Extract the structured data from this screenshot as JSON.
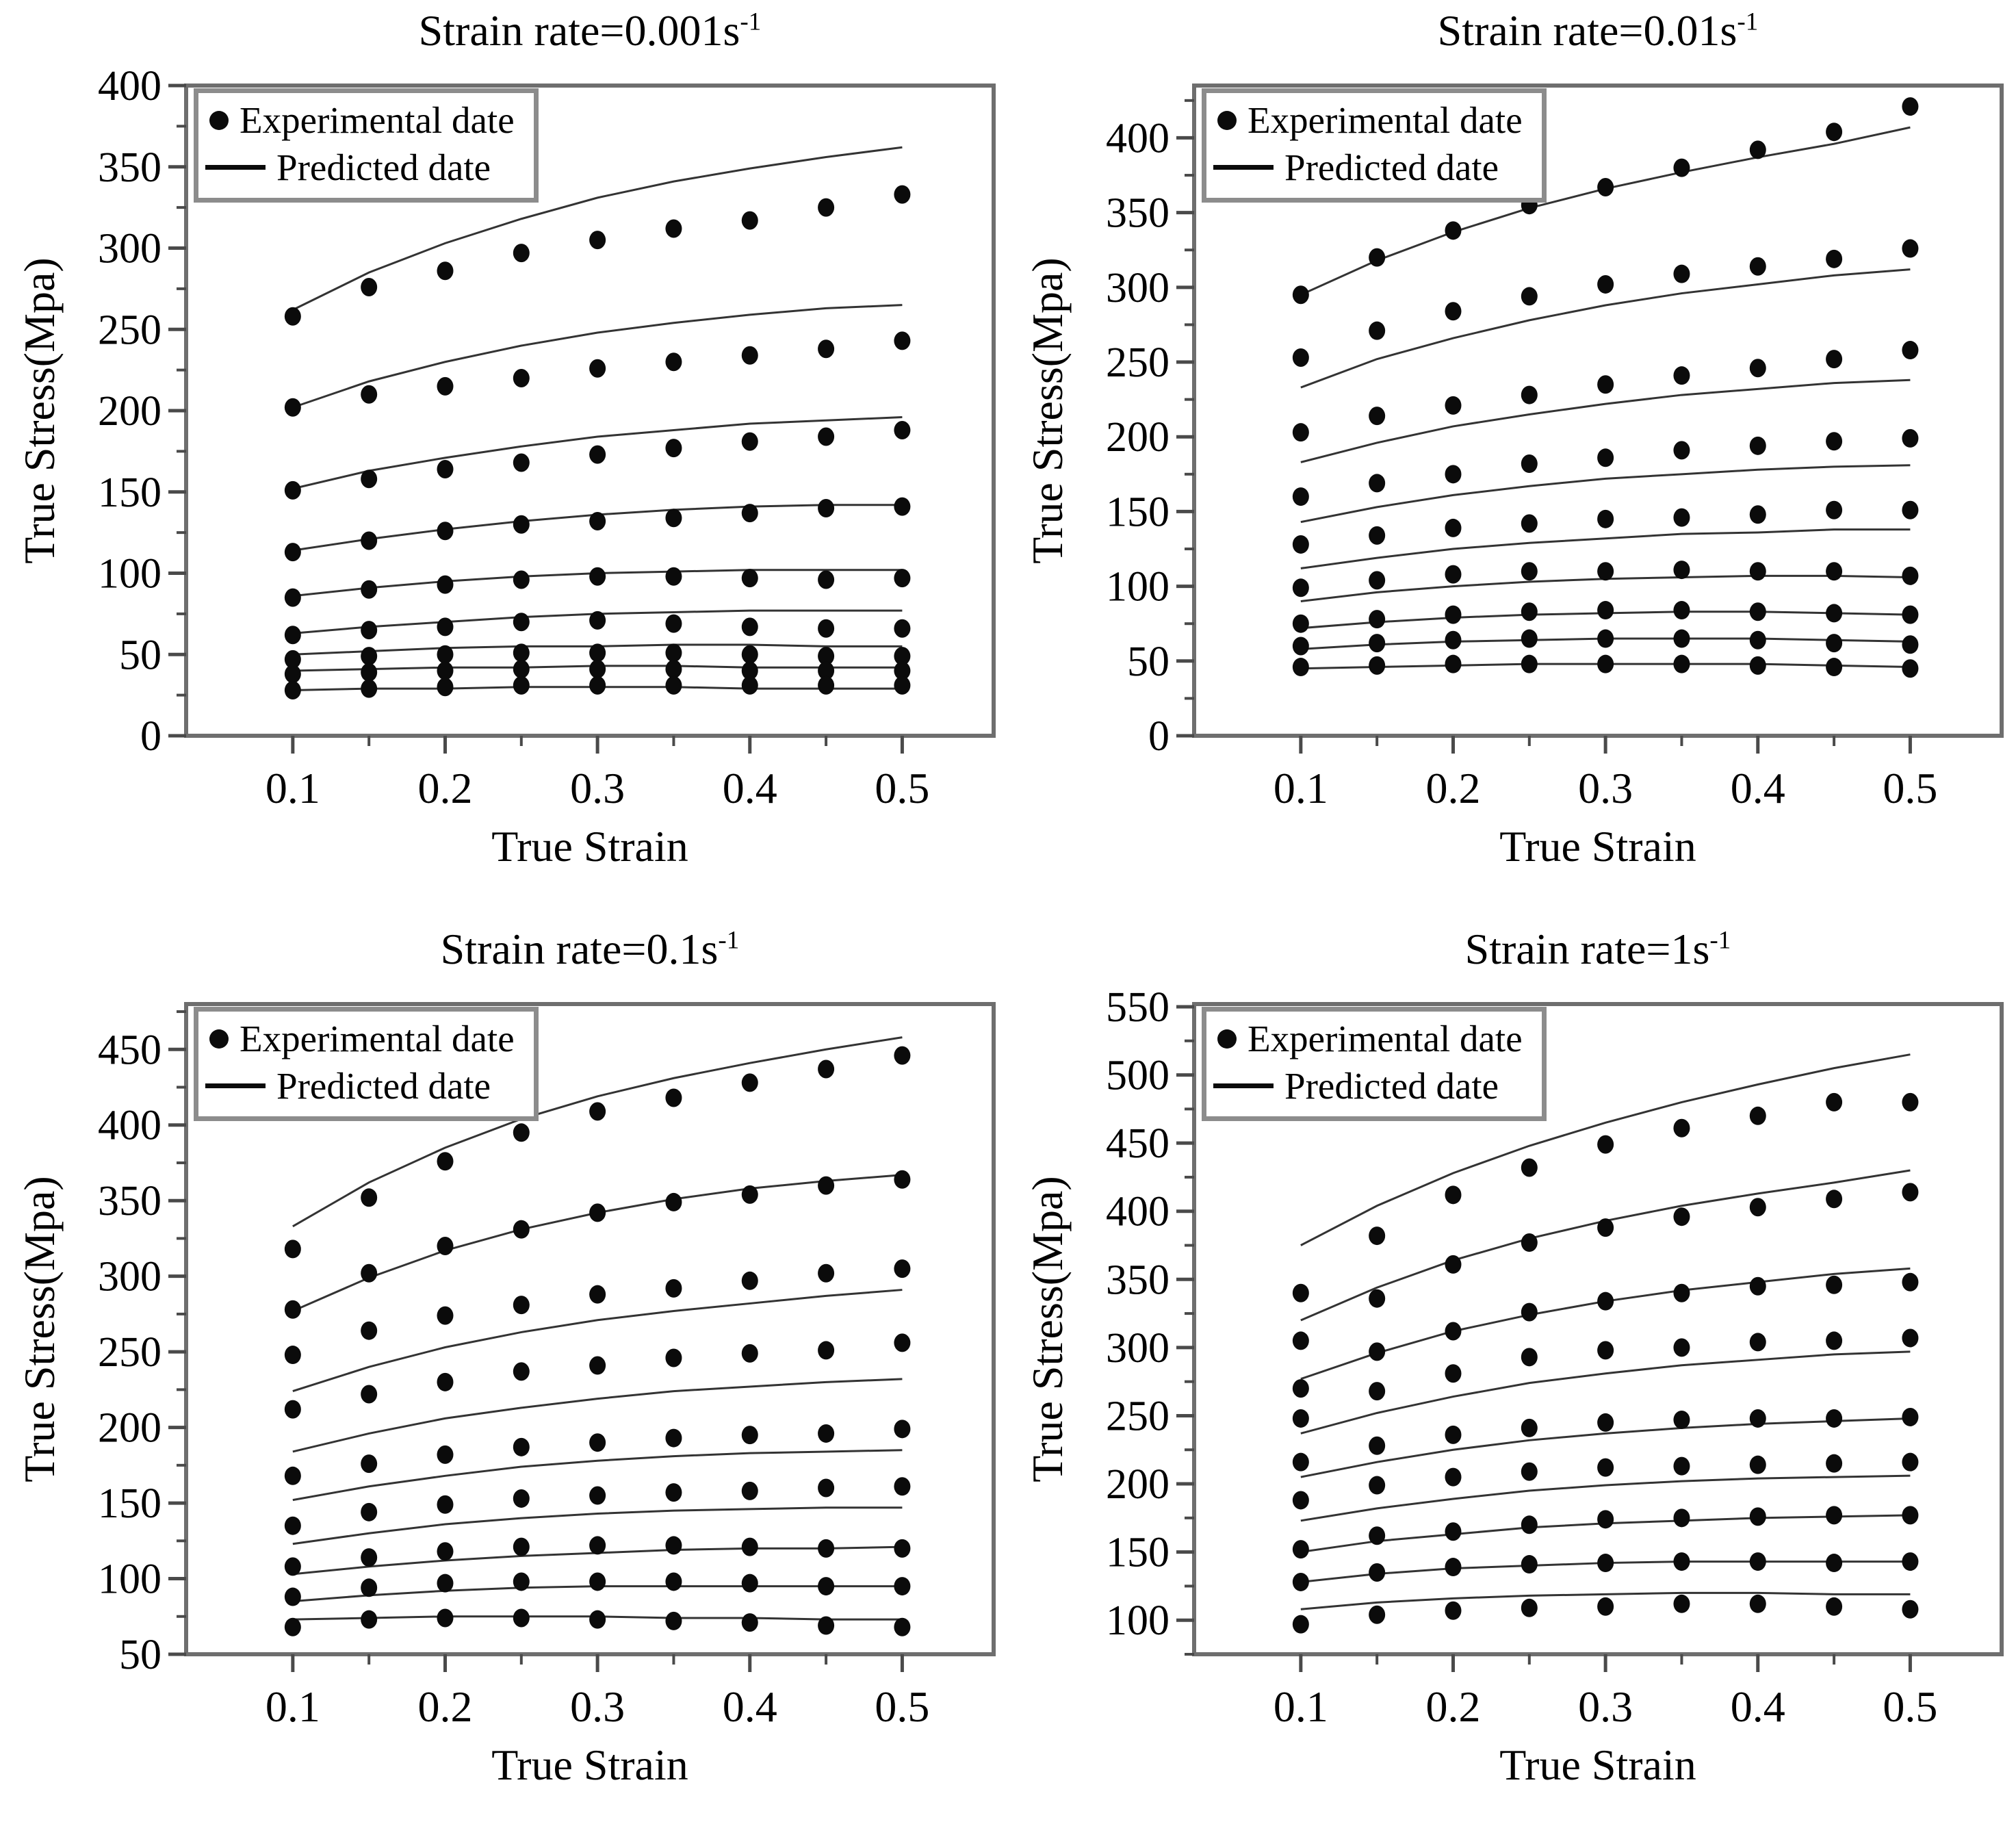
{
  "legend": {
    "experimental": "Experimental date",
    "predicted": "Predicted date"
  },
  "colors": {
    "dot": "#0b0b0b",
    "predicted_line": "#333333",
    "spine": "#6e6e6e",
    "tick": "#4a4a4a",
    "legend_border": "#8c8c8c",
    "background": "#ffffff"
  },
  "chart_data": [
    {
      "type": "scatter",
      "title_base": "Strain rate=0.001s",
      "title_sup": "-1",
      "xlabel": "True Strain",
      "ylabel": "True Stress(Mpa)",
      "legend_entries": [
        "Experimental date",
        "Predicted date"
      ],
      "legend_position": "top-left",
      "grid": false,
      "x": [
        0.1,
        0.15,
        0.2,
        0.25,
        0.3,
        0.35,
        0.4,
        0.45,
        0.5
      ],
      "xticks": [
        0.1,
        0.2,
        0.3,
        0.4,
        0.5
      ],
      "xlim": [
        0.03,
        0.56
      ],
      "ylim": [
        0,
        400
      ],
      "yticks": [
        0,
        50,
        100,
        150,
        200,
        250,
        300,
        350,
        400
      ],
      "y_minor_step": 25,
      "series_experimental": [
        [
          258,
          276,
          286,
          297,
          305,
          312,
          317,
          325,
          333
        ],
        [
          202,
          210,
          215,
          220,
          226,
          230,
          234,
          238,
          243
        ],
        [
          151,
          158,
          164,
          168,
          173,
          177,
          181,
          184,
          188
        ],
        [
          113,
          120,
          126,
          130,
          132,
          134,
          137,
          140,
          141
        ],
        [
          85,
          90,
          93,
          96,
          98,
          98,
          97,
          96,
          97
        ],
        [
          62,
          65,
          67,
          70,
          71,
          69,
          67,
          66,
          66
        ],
        [
          47,
          49,
          50,
          51,
          51,
          51,
          50,
          49,
          49
        ],
        [
          38,
          39,
          40,
          41,
          41,
          41,
          40,
          40,
          40
        ],
        [
          28,
          29,
          30,
          31,
          31,
          31,
          31,
          31,
          31
        ]
      ],
      "series_predicted": [
        [
          262,
          285,
          303,
          318,
          331,
          341,
          349,
          356,
          362
        ],
        [
          202,
          218,
          230,
          240,
          248,
          254,
          259,
          263,
          265
        ],
        [
          152,
          163,
          171,
          178,
          184,
          188,
          192,
          194,
          196
        ],
        [
          114,
          121,
          127,
          132,
          136,
          139,
          141,
          142,
          142
        ],
        [
          86,
          91,
          95,
          98,
          100,
          101,
          102,
          102,
          102
        ],
        [
          63,
          67,
          70,
          73,
          75,
          76,
          77,
          77,
          77
        ],
        [
          50,
          52,
          54,
          55,
          55,
          56,
          56,
          55,
          55
        ],
        [
          40,
          41,
          42,
          42,
          43,
          43,
          42,
          42,
          42
        ],
        [
          28,
          29,
          29,
          30,
          30,
          30,
          29,
          29,
          29
        ]
      ]
    },
    {
      "type": "scatter",
      "title_base": "Strain rate=0.01s",
      "title_sup": "-1",
      "xlabel": "True Strain",
      "ylabel": "True Stress(Mpa)",
      "legend_entries": [
        "Experimental date",
        "Predicted date"
      ],
      "legend_position": "top-left",
      "grid": false,
      "x": [
        0.1,
        0.15,
        0.2,
        0.25,
        0.3,
        0.35,
        0.4,
        0.45,
        0.5
      ],
      "xticks": [
        0.1,
        0.2,
        0.3,
        0.4,
        0.5
      ],
      "xlim": [
        0.03,
        0.56
      ],
      "ylim": [
        0,
        435
      ],
      "yticks": [
        0,
        50,
        100,
        150,
        200,
        250,
        300,
        350,
        400
      ],
      "y_minor_step": 25,
      "series_experimental": [
        [
          295,
          320,
          338,
          355,
          367,
          380,
          392,
          404,
          421
        ],
        [
          253,
          271,
          284,
          294,
          302,
          309,
          314,
          319,
          326
        ],
        [
          203,
          214,
          221,
          228,
          235,
          241,
          246,
          252,
          258
        ],
        [
          160,
          169,
          175,
          182,
          186,
          191,
          194,
          197,
          199
        ],
        [
          128,
          134,
          139,
          142,
          145,
          146,
          148,
          151,
          151
        ],
        [
          99,
          104,
          108,
          110,
          110,
          111,
          110,
          110,
          107
        ],
        [
          75,
          78,
          81,
          83,
          84,
          84,
          83,
          82,
          81
        ],
        [
          60,
          62,
          64,
          65,
          65,
          65,
          64,
          62,
          61
        ],
        [
          46,
          47,
          48,
          48,
          48,
          48,
          47,
          46,
          45
        ]
      ],
      "series_predicted": [
        [
          295,
          318,
          337,
          353,
          366,
          377,
          387,
          396,
          407
        ],
        [
          233,
          252,
          266,
          278,
          288,
          296,
          302,
          308,
          312
        ],
        [
          183,
          196,
          207,
          215,
          222,
          228,
          232,
          236,
          238
        ],
        [
          143,
          153,
          161,
          167,
          172,
          175,
          178,
          180,
          181
        ],
        [
          112,
          119,
          125,
          129,
          132,
          135,
          136,
          138,
          138
        ],
        [
          90,
          96,
          100,
          103,
          105,
          106,
          107,
          107,
          106
        ],
        [
          72,
          76,
          79,
          81,
          82,
          83,
          83,
          82,
          81
        ],
        [
          58,
          61,
          63,
          64,
          65,
          65,
          65,
          64,
          63
        ],
        [
          45,
          46,
          47,
          48,
          48,
          48,
          48,
          47,
          46
        ]
      ]
    },
    {
      "type": "scatter",
      "title_base": "Strain rate=0.1s",
      "title_sup": "-1",
      "xlabel": "True Strain",
      "ylabel": "True Stress(Mpa)",
      "legend_entries": [
        "Experimental date",
        "Predicted date"
      ],
      "legend_position": "top-left",
      "grid": false,
      "x": [
        0.1,
        0.15,
        0.2,
        0.25,
        0.3,
        0.35,
        0.4,
        0.45,
        0.5
      ],
      "xticks": [
        0.1,
        0.2,
        0.3,
        0.4,
        0.5
      ],
      "xlim": [
        0.03,
        0.56
      ],
      "ylim": [
        50,
        480
      ],
      "yticks": [
        50,
        100,
        150,
        200,
        250,
        300,
        350,
        400,
        450
      ],
      "y_minor_step": 25,
      "series_experimental": [
        [
          318,
          352,
          376,
          395,
          409,
          418,
          428,
          437,
          446
        ],
        [
          278,
          302,
          320,
          331,
          342,
          349,
          354,
          360,
          364
        ],
        [
          248,
          264,
          274,
          281,
          288,
          292,
          297,
          302,
          305
        ],
        [
          212,
          222,
          230,
          237,
          241,
          246,
          249,
          251,
          256
        ],
        [
          168,
          176,
          182,
          187,
          190,
          193,
          195,
          196,
          199
        ],
        [
          135,
          144,
          149,
          153,
          155,
          157,
          158,
          160,
          161
        ],
        [
          108,
          114,
          118,
          121,
          122,
          122,
          121,
          120,
          120
        ],
        [
          88,
          94,
          97,
          98,
          98,
          98,
          97,
          95,
          95
        ],
        [
          68,
          73,
          74,
          74,
          73,
          72,
          71,
          69,
          68
        ]
      ],
      "series_predicted": [
        [
          333,
          362,
          385,
          404,
          419,
          431,
          441,
          450,
          458
        ],
        [
          277,
          299,
          317,
          331,
          342,
          351,
          358,
          363,
          367
        ],
        [
          224,
          240,
          253,
          263,
          271,
          277,
          282,
          287,
          291
        ],
        [
          184,
          196,
          206,
          213,
          219,
          224,
          227,
          230,
          232
        ],
        [
          152,
          161,
          168,
          174,
          178,
          181,
          183,
          184,
          185
        ],
        [
          123,
          130,
          136,
          140,
          143,
          145,
          146,
          147,
          147
        ],
        [
          103,
          108,
          112,
          115,
          117,
          119,
          120,
          120,
          121
        ],
        [
          85,
          89,
          92,
          94,
          95,
          95,
          95,
          95,
          95
        ],
        [
          73,
          74,
          75,
          75,
          75,
          74,
          74,
          73,
          73
        ]
      ]
    },
    {
      "type": "scatter",
      "title_base": "Strain rate=1s",
      "title_sup": "-1",
      "xlabel": "True Strain",
      "ylabel": "True Stress(Mpa)",
      "legend_entries": [
        "Experimental date",
        "Predicted date"
      ],
      "legend_position": "top-left",
      "grid": false,
      "x": [
        0.1,
        0.15,
        0.2,
        0.25,
        0.3,
        0.35,
        0.4,
        0.45,
        0.5
      ],
      "xticks": [
        0.1,
        0.2,
        0.3,
        0.4,
        0.5
      ],
      "xlim": [
        0.03,
        0.56
      ],
      "ylim": [
        75,
        552
      ],
      "yticks": [
        100,
        150,
        200,
        250,
        300,
        350,
        400,
        450,
        500,
        550
      ],
      "y_minor_step": 25,
      "series_experimental": [
        [
          340,
          382,
          412,
          432,
          449,
          461,
          470,
          480,
          480
        ],
        [
          305,
          336,
          361,
          377,
          388,
          396,
          403,
          409,
          414
        ],
        [
          270,
          297,
          312,
          326,
          334,
          340,
          345,
          346,
          348
        ],
        [
          248,
          268,
          281,
          293,
          298,
          300,
          304,
          305,
          307
        ],
        [
          216,
          228,
          236,
          241,
          245,
          247,
          248,
          248,
          249
        ],
        [
          188,
          199,
          205,
          209,
          212,
          213,
          214,
          215,
          216
        ],
        [
          152,
          162,
          165,
          170,
          174,
          175,
          176,
          177,
          177
        ],
        [
          128,
          135,
          139,
          141,
          142,
          143,
          143,
          142,
          143
        ],
        [
          97,
          104,
          107,
          109,
          110,
          112,
          112,
          110,
          108
        ]
      ],
      "series_predicted": [
        [
          375,
          404,
          428,
          448,
          465,
          480,
          493,
          505,
          515
        ],
        [
          320,
          344,
          364,
          380,
          393,
          404,
          413,
          421,
          430
        ],
        [
          277,
          296,
          312,
          324,
          334,
          342,
          348,
          354,
          358
        ],
        [
          237,
          252,
          264,
          274,
          281,
          287,
          291,
          295,
          297
        ],
        [
          205,
          216,
          225,
          232,
          237,
          241,
          244,
          246,
          248
        ],
        [
          173,
          182,
          189,
          195,
          199,
          202,
          204,
          205,
          206
        ],
        [
          150,
          158,
          163,
          168,
          171,
          173,
          175,
          176,
          177
        ],
        [
          128,
          134,
          138,
          140,
          142,
          143,
          143,
          143,
          143
        ],
        [
          108,
          113,
          116,
          118,
          119,
          120,
          120,
          119,
          119
        ]
      ]
    }
  ]
}
